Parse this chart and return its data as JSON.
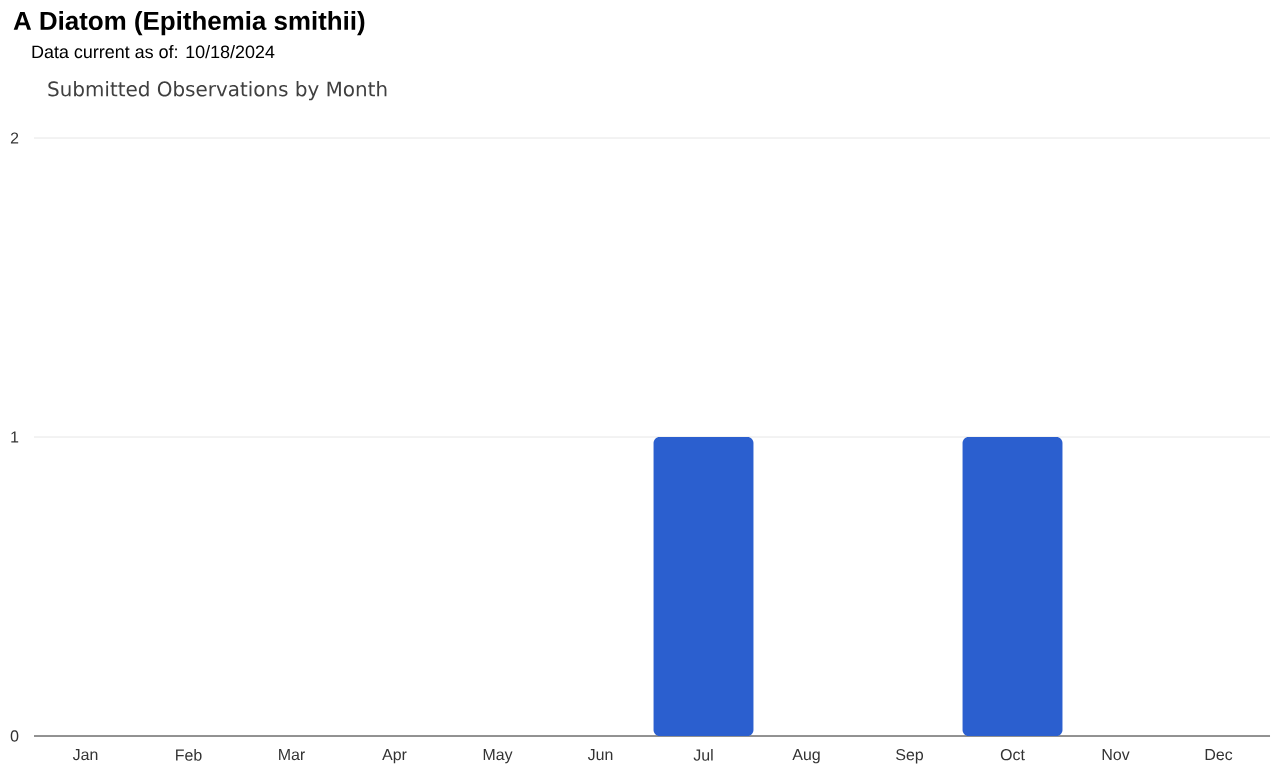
{
  "chart_data": {
    "type": "bar",
    "title": "A Diatom   (Epithemia smithii)",
    "subtitle": "Data current as of: 10/18/2024",
    "annotations": [
      "Submitted Observations by Month"
    ],
    "categories": [
      "Jan",
      "Feb",
      "Mar",
      "Apr",
      "May",
      "Jun",
      "Jul",
      "Aug",
      "Sep",
      "Oct",
      "Nov",
      "Dec"
    ],
    "values": [
      0,
      0,
      0,
      0,
      0,
      0,
      1,
      0,
      0,
      1,
      0,
      0
    ],
    "color": "#2b5fcf",
    "ylim": [
      0,
      2
    ],
    "yticks": [
      0,
      1,
      2
    ],
    "grid": "y"
  }
}
